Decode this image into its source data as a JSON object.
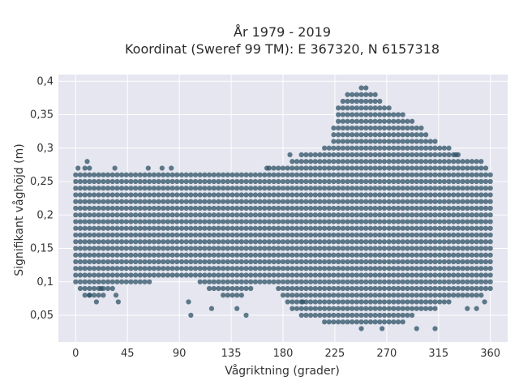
{
  "chart_data": {
    "type": "scatter",
    "title_line1": "År 1979 - 2019",
    "title_line2": "Koordinat (Sweref 99 TM): E 367320, N 6157318",
    "xlabel": "Vågriktning (grader)",
    "ylabel": "Signifikant våghöjd (m)",
    "xlim": [
      -15,
      375
    ],
    "ylim": [
      0.01,
      0.41
    ],
    "x_ticks": [
      0,
      45,
      90,
      135,
      180,
      225,
      270,
      315,
      360
    ],
    "x_tick_labels": [
      "0",
      "45",
      "90",
      "135",
      "180",
      "225",
      "270",
      "315",
      "360"
    ],
    "y_ticks": [
      0.05,
      0.1,
      0.15,
      0.2,
      0.25,
      0.3,
      0.35,
      0.4
    ],
    "y_tick_labels": [
      "0,05",
      "0,1",
      "0,15",
      "0,2",
      "0,25",
      "0,3",
      "0,35",
      "0,4"
    ],
    "grid": true,
    "marker_color": "#2e5266",
    "plot_background": "#e5e6ef",
    "x_step": 4,
    "y_step": 0.01,
    "envelope": [
      {
        "x": 0,
        "ymin": 0.1,
        "ymax": 0.26
      },
      {
        "x": 10,
        "ymin": 0.08,
        "ymax": 0.27
      },
      {
        "x": 20,
        "ymin": 0.08,
        "ymax": 0.26
      },
      {
        "x": 30,
        "ymin": 0.09,
        "ymax": 0.26
      },
      {
        "x": 40,
        "ymin": 0.1,
        "ymax": 0.26
      },
      {
        "x": 50,
        "ymin": 0.1,
        "ymax": 0.26
      },
      {
        "x": 60,
        "ymin": 0.1,
        "ymax": 0.26
      },
      {
        "x": 70,
        "ymin": 0.11,
        "ymax": 0.26
      },
      {
        "x": 80,
        "ymin": 0.11,
        "ymax": 0.26
      },
      {
        "x": 90,
        "ymin": 0.11,
        "ymax": 0.26
      },
      {
        "x": 100,
        "ymin": 0.11,
        "ymax": 0.26
      },
      {
        "x": 110,
        "ymin": 0.1,
        "ymax": 0.26
      },
      {
        "x": 120,
        "ymin": 0.09,
        "ymax": 0.26
      },
      {
        "x": 130,
        "ymin": 0.08,
        "ymax": 0.26
      },
      {
        "x": 140,
        "ymin": 0.08,
        "ymax": 0.26
      },
      {
        "x": 150,
        "ymin": 0.09,
        "ymax": 0.26
      },
      {
        "x": 160,
        "ymin": 0.1,
        "ymax": 0.26
      },
      {
        "x": 170,
        "ymin": 0.1,
        "ymax": 0.27
      },
      {
        "x": 180,
        "ymin": 0.08,
        "ymax": 0.27
      },
      {
        "x": 190,
        "ymin": 0.06,
        "ymax": 0.28
      },
      {
        "x": 200,
        "ymin": 0.05,
        "ymax": 0.29
      },
      {
        "x": 210,
        "ymin": 0.05,
        "ymax": 0.29
      },
      {
        "x": 220,
        "ymin": 0.04,
        "ymax": 0.3
      },
      {
        "x": 230,
        "ymin": 0.04,
        "ymax": 0.37
      },
      {
        "x": 240,
        "ymin": 0.04,
        "ymax": 0.38
      },
      {
        "x": 250,
        "ymin": 0.04,
        "ymax": 0.39
      },
      {
        "x": 260,
        "ymin": 0.04,
        "ymax": 0.38
      },
      {
        "x": 270,
        "ymin": 0.04,
        "ymax": 0.36
      },
      {
        "x": 280,
        "ymin": 0.04,
        "ymax": 0.35
      },
      {
        "x": 290,
        "ymin": 0.05,
        "ymax": 0.34
      },
      {
        "x": 300,
        "ymin": 0.06,
        "ymax": 0.33
      },
      {
        "x": 310,
        "ymin": 0.06,
        "ymax": 0.31
      },
      {
        "x": 320,
        "ymin": 0.07,
        "ymax": 0.3
      },
      {
        "x": 330,
        "ymin": 0.08,
        "ymax": 0.29
      },
      {
        "x": 340,
        "ymin": 0.08,
        "ymax": 0.28
      },
      {
        "x": 350,
        "ymin": 0.08,
        "ymax": 0.28
      },
      {
        "x": 360,
        "ymin": 0.09,
        "ymax": 0.26
      }
    ],
    "outliers": [
      {
        "x": 2,
        "y": 0.27
      },
      {
        "x": 10,
        "y": 0.28
      },
      {
        "x": 12,
        "y": 0.08
      },
      {
        "x": 18,
        "y": 0.07
      },
      {
        "x": 22,
        "y": 0.09
      },
      {
        "x": 34,
        "y": 0.27
      },
      {
        "x": 35,
        "y": 0.08
      },
      {
        "x": 37,
        "y": 0.07
      },
      {
        "x": 63,
        "y": 0.27
      },
      {
        "x": 75,
        "y": 0.27
      },
      {
        "x": 83,
        "y": 0.27
      },
      {
        "x": 98,
        "y": 0.07
      },
      {
        "x": 100,
        "y": 0.05
      },
      {
        "x": 118,
        "y": 0.06
      },
      {
        "x": 140,
        "y": 0.06
      },
      {
        "x": 148,
        "y": 0.05
      },
      {
        "x": 166,
        "y": 0.27
      },
      {
        "x": 186,
        "y": 0.29
      },
      {
        "x": 197,
        "y": 0.07
      },
      {
        "x": 248,
        "y": 0.03
      },
      {
        "x": 266,
        "y": 0.03
      },
      {
        "x": 296,
        "y": 0.03
      },
      {
        "x": 312,
        "y": 0.03
      },
      {
        "x": 330,
        "y": 0.29
      },
      {
        "x": 340,
        "y": 0.06
      },
      {
        "x": 348,
        "y": 0.06
      },
      {
        "x": 355,
        "y": 0.07
      }
    ]
  }
}
